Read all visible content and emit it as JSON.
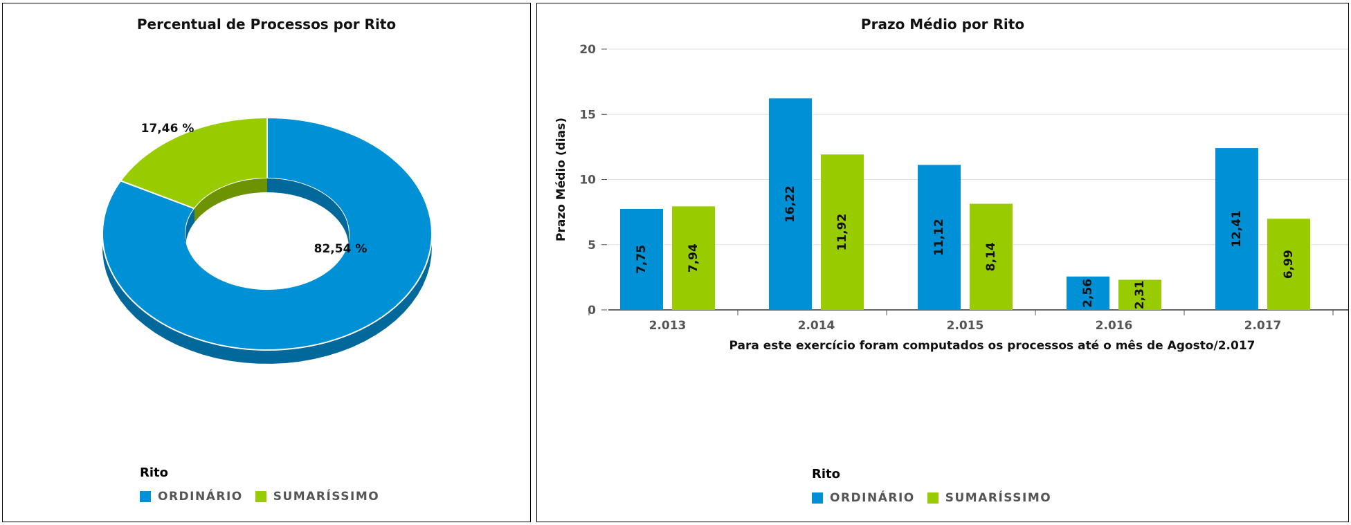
{
  "chart_data": [
    {
      "type": "pie",
      "title": "Percentual de Processos por Rito",
      "slices": [
        {
          "name": "ORDINÁRIO",
          "value": 82.54,
          "label": "82,54 %",
          "color": "#0090d6"
        },
        {
          "name": "SUMARÍSSIMO",
          "value": 17.46,
          "label": "17,46 %",
          "color": "#99cc00"
        }
      ],
      "legend": {
        "title": "Rito",
        "placement": "bottom-left"
      }
    },
    {
      "type": "bar",
      "title": "Prazo Médio por Rito",
      "categories": [
        "2.013",
        "2.014",
        "2.015",
        "2.016",
        "2.017"
      ],
      "series": [
        {
          "name": "ORDINÁRIO",
          "color": "#0090d6",
          "values": [
            7.75,
            16.22,
            11.12,
            2.56,
            12.41
          ],
          "labels": [
            "7,75",
            "16,22",
            "11,12",
            "2,56",
            "12,41"
          ]
        },
        {
          "name": "SUMARÍSSIMO",
          "color": "#99cc00",
          "values": [
            7.94,
            11.92,
            8.14,
            2.31,
            6.99
          ],
          "labels": [
            "7,94",
            "11,92",
            "8,14",
            "2,31",
            "6,99"
          ]
        }
      ],
      "xlabel": "Para este exercício foram computados os processos até o mês de Agosto/2.017",
      "ylabel": "Prazo Médio (dias)",
      "ylim": [
        0,
        20
      ],
      "yticks": [
        0,
        5,
        10,
        15,
        20
      ],
      "grid": true,
      "legend": {
        "title": "Rito",
        "placement": "bottom-center"
      }
    }
  ]
}
